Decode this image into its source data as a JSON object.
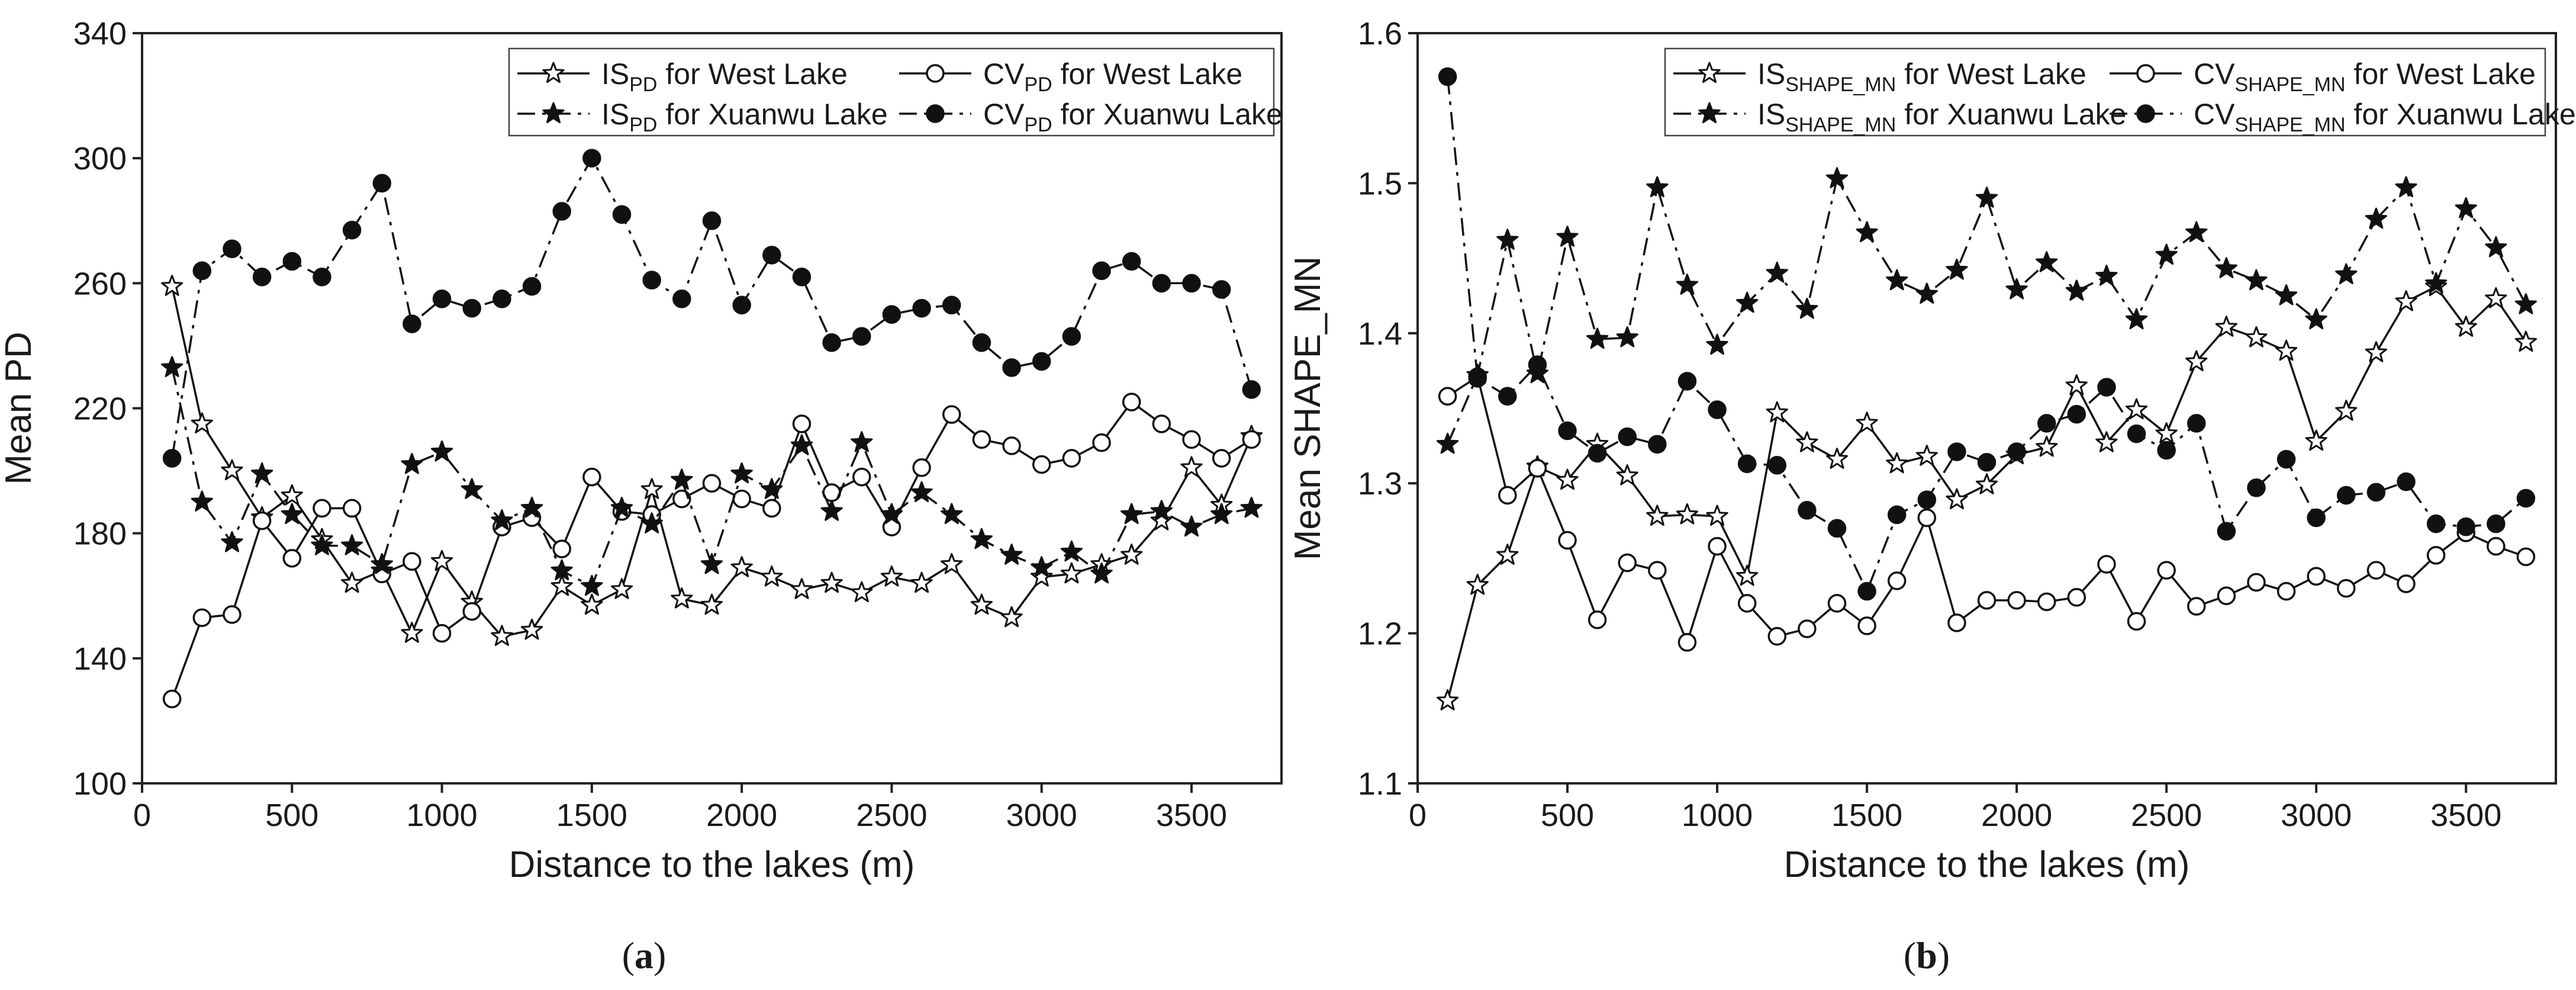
{
  "chart_data": [
    {
      "type": "line",
      "panel_label": "(a)",
      "panel_letter": "a",
      "xlabel": "Distance to the lakes (m)",
      "ylabel": "Mean PD",
      "xlim": [
        0,
        3800
      ],
      "ylim": [
        100,
        340
      ],
      "xticks": [
        0,
        500,
        1000,
        1500,
        2000,
        2500,
        3000,
        3500
      ],
      "yticks": [
        100,
        140,
        180,
        220,
        260,
        300,
        340
      ],
      "grid": false,
      "legend_position": "top-right",
      "x": [
        100,
        200,
        300,
        400,
        500,
        600,
        700,
        800,
        900,
        1000,
        1100,
        1200,
        1300,
        1400,
        1500,
        1600,
        1700,
        1800,
        1900,
        2000,
        2100,
        2200,
        2300,
        2400,
        2500,
        2600,
        2700,
        2800,
        2900,
        3000,
        3100,
        3200,
        3300,
        3400,
        3500,
        3600,
        3700
      ],
      "series": [
        {
          "name": "IS_PD for West Lake",
          "legend_main": "IS",
          "legend_sub": "PD",
          "legend_rest": " for West Lake",
          "marker": "open-star",
          "line": "solid",
          "values": [
            259,
            215,
            200,
            185,
            192,
            178,
            164,
            168,
            148,
            171,
            158,
            147,
            149,
            163,
            157,
            162,
            194,
            159,
            157,
            169,
            166,
            162,
            164,
            161,
            166,
            164,
            170,
            157,
            153,
            166,
            167,
            170,
            173,
            184,
            201,
            189,
            211
          ]
        },
        {
          "name": "CV_PD for West Lake",
          "legend_main": "CV",
          "legend_sub": "PD",
          "legend_rest": " for West Lake",
          "marker": "open-circle",
          "line": "solid",
          "values": [
            127,
            153,
            154,
            184,
            172,
            188,
            188,
            167,
            171,
            148,
            155,
            182,
            185,
            175,
            198,
            187,
            186,
            191,
            196,
            191,
            188,
            215,
            193,
            198,
            182,
            201,
            218,
            210,
            208,
            202,
            204,
            209,
            222,
            215,
            210,
            204,
            210
          ]
        },
        {
          "name": "IS_PD for Xuanwu Lake",
          "legend_main": "IS",
          "legend_sub": "PD",
          "legend_rest": " for Xuanwu Lake",
          "marker": "filled-star",
          "line": "dash-dot",
          "values": [
            233,
            190,
            177,
            199,
            186,
            176,
            176,
            170,
            202,
            206,
            194,
            184,
            188,
            168,
            163,
            188,
            183,
            197,
            170,
            199,
            194,
            208,
            187,
            209,
            186,
            193,
            186,
            178,
            173,
            169,
            174,
            167,
            186,
            187,
            182,
            186,
            188
          ]
        },
        {
          "name": "CV_PD for Xuanwu Lake",
          "legend_main": "CV",
          "legend_sub": "PD",
          "legend_rest": " for Xuanwu Lake",
          "marker": "filled-circle",
          "line": "dash-dot",
          "values": [
            204,
            264,
            271,
            262,
            267,
            262,
            277,
            292,
            247,
            255,
            252,
            255,
            259,
            283,
            300,
            282,
            261,
            255,
            280,
            253,
            269,
            262,
            241,
            243,
            250,
            252,
            253,
            241,
            233,
            235,
            243,
            264,
            267,
            260,
            260,
            258,
            226
          ]
        }
      ]
    },
    {
      "type": "line",
      "panel_label": "(b)",
      "panel_letter": "b",
      "xlabel": "Distance to the lakes (m)",
      "ylabel": "Mean SHAPE_MN",
      "xlim": [
        0,
        3800
      ],
      "ylim": [
        1.1,
        1.6
      ],
      "xticks": [
        0,
        500,
        1000,
        1500,
        2000,
        2500,
        3000,
        3500
      ],
      "yticks": [
        "1.1",
        "1.2",
        "1.3",
        "1.4",
        "1.5",
        "1.6"
      ],
      "grid": false,
      "legend_position": "top-right",
      "x": [
        100,
        200,
        300,
        400,
        500,
        600,
        700,
        800,
        900,
        1000,
        1100,
        1200,
        1300,
        1400,
        1500,
        1600,
        1700,
        1800,
        1900,
        2000,
        2100,
        2200,
        2300,
        2400,
        2500,
        2600,
        2700,
        2800,
        2900,
        3000,
        3100,
        3200,
        3300,
        3400,
        3500,
        3600,
        3700
      ],
      "series": [
        {
          "name": "IS_SHAPE_MN for West Lake",
          "legend_main": "IS",
          "legend_sub": "SHAPE_MN",
          "legend_rest": " for West Lake",
          "marker": "open-star",
          "line": "solid",
          "values": [
            1.155,
            1.232,
            1.252,
            1.311,
            1.302,
            1.326,
            1.305,
            1.278,
            1.279,
            1.278,
            1.238,
            1.347,
            1.327,
            1.316,
            1.34,
            1.313,
            1.318,
            1.289,
            1.299,
            1.319,
            1.324,
            1.365,
            1.327,
            1.349,
            1.333,
            1.381,
            1.404,
            1.397,
            1.388,
            1.328,
            1.348,
            1.387,
            1.421,
            1.431,
            1.404,
            1.423,
            1.394
          ]
        },
        {
          "name": "CV_SHAPE_MN for West Lake",
          "legend_main": "CV",
          "legend_sub": "SHAPE_MN",
          "legend_rest": " for West Lake",
          "marker": "open-circle",
          "line": "solid",
          "values": [
            1.358,
            1.371,
            1.292,
            1.31,
            1.262,
            1.209,
            1.247,
            1.242,
            1.194,
            1.258,
            1.22,
            1.198,
            1.203,
            1.22,
            1.205,
            1.235,
            1.277,
            1.207,
            1.222,
            1.222,
            1.221,
            1.224,
            1.246,
            1.208,
            1.242,
            1.218,
            1.225,
            1.234,
            1.228,
            1.238,
            1.23,
            1.242,
            1.233,
            1.252,
            1.267,
            1.258,
            1.251
          ]
        },
        {
          "name": "IS_SHAPE_MN for Xuanwu Lake",
          "legend_main": "IS",
          "legend_sub": "SHAPE_MN",
          "legend_rest": " for Xuanwu Lake",
          "marker": "filled-star",
          "line": "dash-dot",
          "values": [
            1.326,
            1.372,
            1.462,
            1.373,
            1.464,
            1.396,
            1.397,
            1.497,
            1.432,
            1.392,
            1.42,
            1.44,
            1.416,
            1.503,
            1.467,
            1.435,
            1.426,
            1.442,
            1.49,
            1.429,
            1.447,
            1.428,
            1.438,
            1.409,
            1.452,
            1.467,
            1.443,
            1.435,
            1.425,
            1.409,
            1.439,
            1.476,
            1.497,
            1.433,
            1.483,
            1.457,
            1.419
          ]
        },
        {
          "name": "CV_SHAPE_MN for Xuanwu Lake",
          "legend_main": "CV",
          "legend_sub": "SHAPE_MN",
          "legend_rest": " for Xuanwu Lake",
          "marker": "filled-circle",
          "line": "dash-dot",
          "values": [
            1.571,
            1.37,
            1.358,
            1.379,
            1.335,
            1.32,
            1.331,
            1.326,
            1.368,
            1.349,
            1.313,
            1.312,
            1.282,
            1.27,
            1.228,
            1.279,
            1.289,
            1.321,
            1.314,
            1.321,
            1.34,
            1.346,
            1.364,
            1.333,
            1.322,
            1.34,
            1.268,
            1.297,
            1.316,
            1.277,
            1.292,
            1.294,
            1.301,
            1.273,
            1.271,
            1.273,
            1.29
          ]
        }
      ]
    }
  ]
}
